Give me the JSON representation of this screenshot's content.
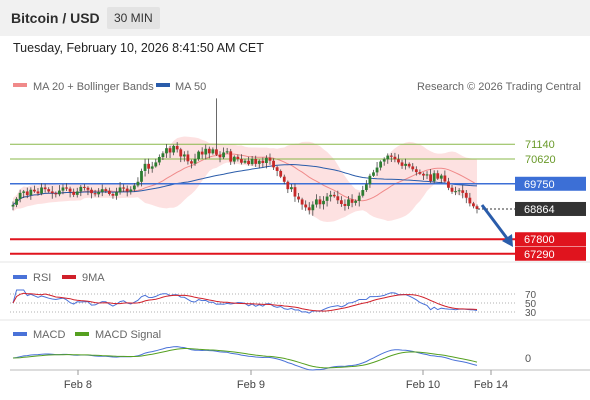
{
  "header": {
    "title": "Bitcoin / USD",
    "timeframe": "30 MIN"
  },
  "datetime": "Tuesday, February 10, 2026 8:41:50 AM CET",
  "price_legend": {
    "ma20": "MA 20 + Bollinger Bands",
    "ma50": "MA 50",
    "research": "Research © 2026 Trading Central"
  },
  "rsi_legend": {
    "rsi": "RSI",
    "ma": "9MA"
  },
  "macd_legend": {
    "macd": "MACD",
    "signal": "MACD Signal"
  },
  "colors": {
    "bollinger": "#fddcdc",
    "ma20": "#f08a8a",
    "ma50": "#2a5caa",
    "resistance": "#8ab84a",
    "pivot": "#3c6fd6",
    "support": "#e0141e",
    "up": "#2e7d32",
    "down": "#c62828",
    "last": "#333333",
    "rsi": "#4a72d8",
    "rsi_ma": "#d0202a",
    "macd": "#4a72d8",
    "macd_signal": "#55a020"
  },
  "chart_data": {
    "type": "candlestick",
    "x_ticks": [
      "Feb 8",
      "Feb 9",
      "Feb 10",
      "Feb 14"
    ],
    "levels": {
      "resistance": [
        71140,
        70620
      ],
      "pivot": 69750,
      "last": 68864,
      "support": [
        67800,
        67290
      ]
    },
    "level_labels": {
      "r1": "71140",
      "r2": "70620",
      "pivot": "69750",
      "last": "68864",
      "s1": "67800",
      "s2": "67290"
    },
    "rsi_levels": [
      "70",
      "50",
      "30"
    ],
    "macd_zero": "0",
    "close": [
      69010,
      69220,
      69430,
      69480,
      69350,
      69540,
      69480,
      69410,
      69620,
      69560,
      69480,
      69420,
      69380,
      69510,
      69620,
      69580,
      69470,
      69360,
      69480,
      69640,
      69610,
      69540,
      69420,
      69380,
      69460,
      69560,
      69500,
      69390,
      69330,
      69460,
      69620,
      69580,
      69480,
      69550,
      69690,
      69820,
      70200,
      70450,
      70280,
      70360,
      70500,
      70690,
      70820,
      71000,
      70850,
      71080,
      70960,
      70710,
      70780,
      70540,
      70460,
      70620,
      70880,
      70780,
      70980,
      70820,
      70960,
      70770,
      70680,
      70850,
      70890,
      70530,
      70700,
      70620,
      70490,
      70560,
      70440,
      70620,
      70450,
      70560,
      70480,
      70660,
      70560,
      70330,
      70200,
      70000,
      69820,
      69560,
      69630,
      69300,
      69200,
      69020,
      68920,
      68820,
      69020,
      69200,
      69030,
      69150,
      69300,
      69360,
      69310,
      69170,
      69040,
      68970,
      69200,
      69080,
      69150,
      69330,
      69530,
      69730,
      70030,
      70150,
      70320,
      70530,
      70610,
      70740,
      70700,
      70610,
      70500,
      70380,
      70450,
      70360,
      70260,
      70160,
      70100,
      70040,
      70080,
      69840,
      70120,
      69930,
      70040,
      69830,
      69610,
      69470,
      69490,
      69520,
      69430,
      69260,
      69060,
      68960,
      68864
    ],
    "rsi_range": [
      0,
      100
    ],
    "price_range": [
      67000,
      72800
    ]
  }
}
